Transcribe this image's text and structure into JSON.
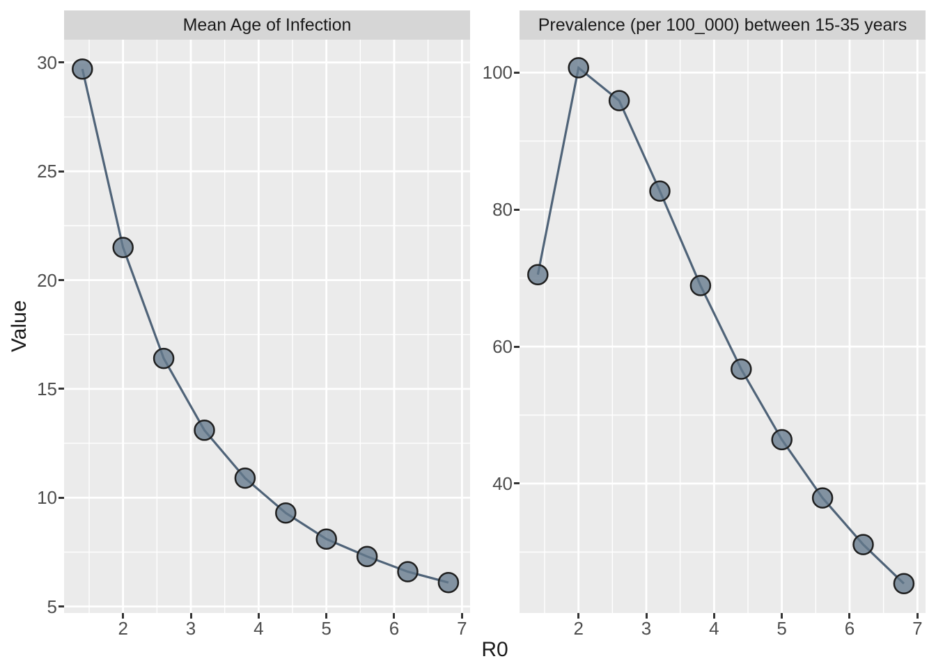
{
  "figure": {
    "xlabel": "R0",
    "ylabel": "Value",
    "background": "#FFFFFF",
    "panel_bg": "#EBEBEB",
    "strip_bg": "#D6D6D6",
    "grid_color": "#FFFFFF",
    "line_color": "#4F6378",
    "point_fill": "#64788C",
    "point_stroke": "#1F1F1F",
    "tick_label_color": "#4D4D4D",
    "tick_mark_color": "#333333",
    "text_color": "#1A1A1A"
  },
  "chart_data": [
    {
      "type": "line",
      "title": "Mean Age of Infection",
      "xlabel": "R0",
      "ylabel": "Value",
      "x": [
        1.4,
        2.0,
        2.6,
        3.2,
        3.8,
        4.4,
        5.0,
        5.6,
        6.2,
        6.8
      ],
      "y": [
        29.7,
        21.5,
        16.4,
        13.1,
        10.9,
        9.3,
        8.1,
        7.3,
        6.6,
        6.1
      ],
      "x_ticks": [
        2,
        3,
        4,
        5,
        6,
        7
      ],
      "y_ticks": [
        5,
        10,
        15,
        20,
        25,
        30
      ],
      "x_minor": [
        1.5,
        2.5,
        3.5,
        4.5,
        5.5,
        6.5
      ],
      "y_minor": [
        7.5,
        12.5,
        17.5,
        22.5,
        27.5
      ],
      "x_range": [
        1.13,
        7.12
      ],
      "y_range": [
        4.7,
        31.05
      ],
      "grid": true,
      "legend": "none"
    },
    {
      "type": "line",
      "title": "Prevalence (per 100_000) between 15-35 years",
      "xlabel": "R0",
      "ylabel": "Value",
      "x": [
        1.4,
        2.0,
        2.6,
        3.2,
        3.8,
        4.4,
        5.0,
        5.6,
        6.2,
        6.8
      ],
      "y": [
        70.5,
        100.7,
        95.9,
        82.7,
        68.9,
        56.7,
        46.4,
        37.9,
        31.1,
        25.4
      ],
      "x_ticks": [
        2,
        3,
        4,
        5,
        6,
        7
      ],
      "y_ticks": [
        40,
        60,
        80,
        100
      ],
      "x_minor": [
        1.5,
        2.5,
        3.5,
        4.5,
        5.5,
        6.5
      ],
      "y_minor": [
        30,
        50,
        70,
        90
      ],
      "x_range": [
        1.13,
        7.12
      ],
      "y_range": [
        21.1,
        104.8
      ],
      "grid": true,
      "legend": "none"
    }
  ]
}
